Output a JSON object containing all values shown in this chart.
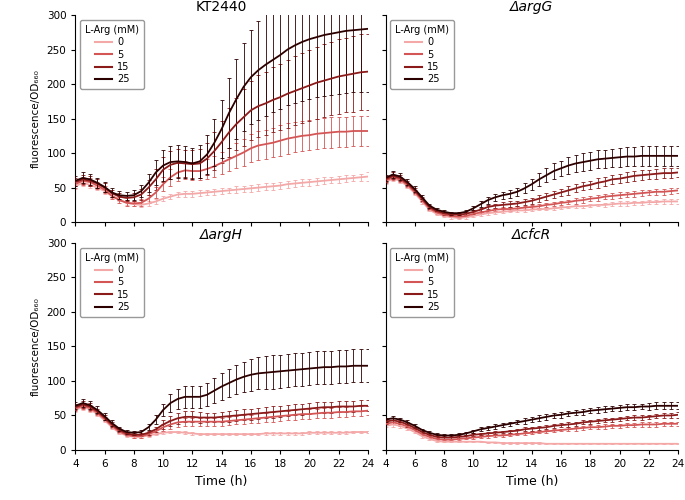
{
  "colors": [
    "#f4a8a8",
    "#d45555",
    "#8b1a1a",
    "#2d0000"
  ],
  "labels": [
    "0",
    "5",
    "15",
    "25"
  ],
  "titles": [
    "KT2440",
    "ΔargG",
    "ΔargH",
    "ΔcfcR"
  ],
  "xlabel": "Time (h)",
  "ylabel": "fluorescence/OD₆₆₀",
  "ylim": [
    0,
    300
  ],
  "xlim": [
    4,
    24
  ],
  "xticks": [
    4,
    6,
    8,
    10,
    12,
    14,
    16,
    18,
    20,
    22,
    24
  ],
  "yticks": [
    0,
    50,
    100,
    150,
    200,
    250,
    300
  ],
  "legend_title": "L-Arg (mM)",
  "time": [
    4.0,
    4.5,
    5.0,
    5.5,
    6.0,
    6.5,
    7.0,
    7.5,
    8.0,
    8.5,
    9.0,
    9.5,
    10.0,
    10.5,
    11.0,
    11.5,
    12.0,
    12.5,
    13.0,
    13.5,
    14.0,
    14.5,
    15.0,
    15.5,
    16.0,
    16.5,
    17.0,
    17.5,
    18.0,
    18.5,
    19.0,
    19.5,
    20.0,
    20.5,
    21.0,
    21.5,
    22.0,
    22.5,
    23.0,
    23.5,
    24.0
  ],
  "panels": {
    "KT2440": {
      "mean": [
        [
          52,
          57,
          54,
          50,
          45,
          38,
          33,
          28,
          26,
          25,
          27,
          30,
          34,
          37,
          40,
          41,
          41,
          42,
          43,
          44,
          45,
          46,
          47,
          48,
          49,
          50,
          51,
          52,
          53,
          55,
          56,
          57,
          58,
          59,
          60,
          61,
          62,
          63,
          64,
          65,
          66
        ],
        [
          55,
          60,
          58,
          53,
          47,
          38,
          32,
          28,
          27,
          28,
          34,
          43,
          55,
          65,
          72,
          75,
          74,
          74,
          77,
          81,
          86,
          91,
          96,
          101,
          107,
          111,
          113,
          115,
          118,
          121,
          123,
          125,
          126,
          128,
          129,
          130,
          131,
          131,
          132,
          132,
          132
        ],
        [
          58,
          62,
          60,
          56,
          50,
          42,
          37,
          35,
          36,
          40,
          50,
          62,
          76,
          83,
          86,
          85,
          84,
          85,
          92,
          103,
          116,
          130,
          142,
          152,
          162,
          168,
          172,
          177,
          181,
          186,
          190,
          194,
          198,
          202,
          205,
          208,
          211,
          213,
          215,
          217,
          218
        ],
        [
          60,
          64,
          62,
          57,
          51,
          43,
          39,
          38,
          39,
          45,
          57,
          72,
          82,
          87,
          88,
          87,
          85,
          88,
          98,
          115,
          135,
          158,
          178,
          196,
          210,
          220,
          228,
          235,
          242,
          250,
          256,
          261,
          265,
          268,
          271,
          273,
          275,
          277,
          278,
          279,
          280
        ]
      ],
      "err": [
        [
          4,
          5,
          5,
          4,
          4,
          3,
          3,
          3,
          3,
          3,
          3,
          4,
          4,
          4,
          4,
          4,
          4,
          4,
          4,
          4,
          4,
          4,
          5,
          5,
          5,
          5,
          5,
          5,
          5,
          5,
          5,
          5,
          5,
          5,
          5,
          5,
          5,
          5,
          5,
          5,
          6
        ],
        [
          5,
          6,
          6,
          5,
          5,
          4,
          4,
          4,
          4,
          5,
          6,
          8,
          10,
          12,
          13,
          13,
          13,
          13,
          14,
          15,
          16,
          17,
          18,
          19,
          20,
          21,
          21,
          21,
          22,
          22,
          22,
          22,
          22,
          22,
          22,
          22,
          22,
          22,
          22,
          22,
          22
        ],
        [
          6,
          7,
          7,
          6,
          6,
          5,
          5,
          5,
          6,
          8,
          11,
          15,
          18,
          20,
          20,
          20,
          20,
          21,
          23,
          27,
          31,
          35,
          38,
          41,
          43,
          45,
          46,
          47,
          48,
          49,
          50,
          51,
          52,
          52,
          53,
          53,
          54,
          54,
          55,
          55,
          55
        ],
        [
          7,
          8,
          8,
          7,
          7,
          6,
          6,
          6,
          7,
          9,
          13,
          18,
          22,
          24,
          24,
          23,
          23,
          24,
          28,
          34,
          42,
          51,
          58,
          64,
          68,
          72,
          74,
          76,
          78,
          81,
          83,
          85,
          86,
          87,
          88,
          89,
          89,
          90,
          90,
          91,
          91
        ]
      ]
    },
    "DargG": {
      "mean": [
        [
          58,
          63,
          60,
          52,
          42,
          30,
          18,
          12,
          9,
          7,
          6,
          7,
          9,
          11,
          13,
          14,
          15,
          16,
          17,
          17,
          18,
          19,
          19,
          20,
          21,
          22,
          23,
          23,
          24,
          25,
          25,
          26,
          27,
          27,
          28,
          28,
          29,
          29,
          30,
          30,
          30
        ],
        [
          60,
          65,
          62,
          54,
          44,
          32,
          20,
          14,
          11,
          9,
          8,
          9,
          12,
          14,
          16,
          18,
          19,
          19,
          20,
          21,
          22,
          23,
          25,
          26,
          28,
          29,
          31,
          32,
          34,
          35,
          37,
          38,
          39,
          40,
          41,
          42,
          43,
          44,
          44,
          45,
          46
        ],
        [
          62,
          67,
          64,
          56,
          46,
          34,
          22,
          16,
          13,
          11,
          11,
          12,
          15,
          18,
          22,
          24,
          25,
          26,
          27,
          29,
          31,
          34,
          37,
          40,
          43,
          46,
          49,
          52,
          54,
          57,
          59,
          62,
          63,
          65,
          67,
          68,
          69,
          70,
          71,
          71,
          72
        ],
        [
          64,
          69,
          66,
          58,
          48,
          36,
          24,
          18,
          15,
          13,
          13,
          15,
          20,
          26,
          32,
          36,
          39,
          41,
          44,
          49,
          55,
          62,
          68,
          74,
          78,
          82,
          85,
          87,
          89,
          91,
          92,
          93,
          94,
          95,
          95,
          96,
          96,
          96,
          96,
          96,
          96
        ]
      ],
      "err": [
        [
          3,
          4,
          4,
          3,
          3,
          3,
          2,
          2,
          2,
          2,
          2,
          2,
          2,
          2,
          2,
          2,
          2,
          2,
          2,
          2,
          2,
          2,
          2,
          2,
          2,
          2,
          2,
          2,
          2,
          2,
          3,
          3,
          3,
          3,
          3,
          3,
          3,
          3,
          3,
          3,
          3
        ],
        [
          3,
          4,
          4,
          3,
          3,
          3,
          2,
          2,
          2,
          2,
          2,
          2,
          2,
          2,
          2,
          2,
          3,
          3,
          3,
          3,
          3,
          3,
          3,
          3,
          3,
          3,
          4,
          4,
          4,
          4,
          4,
          4,
          4,
          4,
          4,
          4,
          4,
          4,
          4,
          4,
          4
        ],
        [
          4,
          5,
          5,
          4,
          4,
          3,
          3,
          2,
          2,
          2,
          2,
          2,
          3,
          3,
          3,
          3,
          4,
          4,
          4,
          4,
          4,
          5,
          5,
          5,
          5,
          6,
          6,
          6,
          6,
          7,
          7,
          7,
          7,
          7,
          7,
          7,
          7,
          7,
          7,
          7,
          7
        ],
        [
          4,
          5,
          5,
          4,
          4,
          3,
          3,
          2,
          2,
          2,
          2,
          2,
          3,
          4,
          5,
          5,
          5,
          6,
          6,
          7,
          8,
          9,
          10,
          11,
          11,
          12,
          12,
          13,
          13,
          13,
          13,
          13,
          14,
          14,
          14,
          14,
          14,
          14,
          14,
          14,
          14
        ]
      ]
    },
    "DargH": {
      "mean": [
        [
          58,
          62,
          59,
          52,
          43,
          33,
          25,
          21,
          19,
          19,
          21,
          23,
          25,
          26,
          26,
          25,
          24,
          23,
          23,
          23,
          23,
          23,
          23,
          23,
          23,
          23,
          24,
          24,
          24,
          24,
          24,
          24,
          25,
          25,
          25,
          25,
          25,
          25,
          26,
          26,
          26
        ],
        [
          60,
          64,
          61,
          54,
          45,
          35,
          27,
          22,
          20,
          20,
          23,
          27,
          33,
          37,
          40,
          41,
          41,
          41,
          41,
          41,
          41,
          42,
          43,
          44,
          45,
          46,
          47,
          48,
          49,
          50,
          51,
          52,
          52,
          53,
          54,
          54,
          55,
          55,
          56,
          56,
          57
        ],
        [
          62,
          66,
          63,
          56,
          47,
          37,
          29,
          24,
          22,
          22,
          25,
          30,
          37,
          42,
          46,
          48,
          48,
          47,
          47,
          47,
          48,
          49,
          50,
          51,
          52,
          53,
          54,
          55,
          56,
          57,
          58,
          59,
          60,
          61,
          62,
          62,
          63,
          63,
          63,
          64,
          64
        ],
        [
          64,
          68,
          65,
          58,
          49,
          39,
          31,
          26,
          25,
          26,
          33,
          44,
          58,
          68,
          74,
          77,
          77,
          77,
          80,
          86,
          92,
          97,
          102,
          106,
          109,
          111,
          112,
          113,
          114,
          115,
          116,
          117,
          118,
          119,
          120,
          120,
          121,
          121,
          122,
          122,
          122
        ]
      ],
      "err": [
        [
          3,
          4,
          4,
          3,
          3,
          3,
          2,
          2,
          2,
          2,
          2,
          2,
          2,
          2,
          2,
          2,
          2,
          2,
          2,
          2,
          2,
          2,
          2,
          2,
          2,
          2,
          2,
          2,
          2,
          2,
          2,
          2,
          2,
          2,
          2,
          2,
          2,
          2,
          2,
          2,
          2
        ],
        [
          3,
          4,
          4,
          3,
          3,
          3,
          2,
          2,
          2,
          2,
          3,
          4,
          5,
          6,
          6,
          6,
          6,
          6,
          6,
          6,
          6,
          6,
          6,
          6,
          6,
          7,
          7,
          7,
          7,
          7,
          7,
          7,
          7,
          7,
          7,
          7,
          7,
          7,
          7,
          7,
          7
        ],
        [
          4,
          5,
          5,
          4,
          4,
          3,
          3,
          2,
          2,
          2,
          3,
          4,
          6,
          7,
          8,
          8,
          8,
          8,
          7,
          7,
          7,
          8,
          8,
          8,
          8,
          8,
          8,
          8,
          8,
          8,
          8,
          8,
          8,
          8,
          8,
          8,
          8,
          8,
          8,
          8,
          8
        ],
        [
          5,
          6,
          6,
          5,
          5,
          4,
          3,
          3,
          3,
          3,
          4,
          6,
          9,
          13,
          15,
          16,
          16,
          16,
          17,
          18,
          19,
          20,
          21,
          22,
          23,
          23,
          24,
          24,
          24,
          24,
          24,
          24,
          24,
          24,
          24,
          24,
          24,
          24,
          24,
          24,
          24
        ]
      ]
    },
    "DcfcR": {
      "mean": [
        [
          35,
          37,
          35,
          31,
          26,
          20,
          16,
          13,
          12,
          12,
          12,
          12,
          12,
          12,
          11,
          11,
          10,
          10,
          10,
          10,
          10,
          10,
          9,
          9,
          9,
          9,
          9,
          9,
          9,
          9,
          9,
          9,
          9,
          9,
          9,
          9,
          9,
          9,
          9,
          9,
          9
        ],
        [
          38,
          40,
          38,
          34,
          29,
          23,
          19,
          16,
          15,
          15,
          16,
          17,
          18,
          19,
          20,
          21,
          21,
          22,
          23,
          24,
          25,
          26,
          27,
          28,
          29,
          30,
          31,
          32,
          33,
          33,
          34,
          35,
          35,
          36,
          36,
          37,
          37,
          37,
          38,
          38,
          38
        ],
        [
          41,
          43,
          41,
          37,
          32,
          26,
          22,
          19,
          18,
          18,
          19,
          20,
          22,
          23,
          24,
          25,
          26,
          27,
          28,
          30,
          31,
          32,
          33,
          35,
          36,
          37,
          38,
          40,
          41,
          42,
          43,
          44,
          45,
          46,
          47,
          47,
          48,
          49,
          50,
          50,
          51
        ],
        [
          44,
          46,
          44,
          40,
          35,
          29,
          25,
          22,
          21,
          21,
          22,
          24,
          27,
          30,
          32,
          34,
          36,
          38,
          40,
          42,
          44,
          46,
          48,
          50,
          51,
          53,
          54,
          55,
          57,
          58,
          59,
          60,
          61,
          62,
          62,
          63,
          63,
          64,
          64,
          64,
          64
        ]
      ],
      "err": [
        [
          2,
          3,
          3,
          2,
          2,
          2,
          2,
          2,
          1,
          1,
          1,
          1,
          1,
          1,
          1,
          1,
          1,
          1,
          1,
          1,
          1,
          1,
          1,
          1,
          1,
          1,
          1,
          1,
          1,
          1,
          1,
          1,
          1,
          1,
          1,
          1,
          1,
          1,
          1,
          1,
          1
        ],
        [
          2,
          3,
          3,
          2,
          2,
          2,
          2,
          1,
          1,
          1,
          1,
          1,
          2,
          2,
          2,
          2,
          2,
          2,
          2,
          2,
          2,
          2,
          2,
          2,
          2,
          3,
          3,
          3,
          3,
          3,
          3,
          3,
          3,
          3,
          3,
          3,
          3,
          3,
          3,
          3,
          3
        ],
        [
          3,
          3,
          3,
          3,
          2,
          2,
          2,
          2,
          2,
          2,
          2,
          2,
          2,
          2,
          2,
          2,
          2,
          2,
          3,
          3,
          3,
          3,
          3,
          3,
          3,
          3,
          3,
          3,
          3,
          3,
          3,
          3,
          3,
          3,
          3,
          3,
          3,
          3,
          3,
          4,
          4
        ],
        [
          3,
          3,
          3,
          3,
          3,
          2,
          2,
          2,
          2,
          2,
          2,
          2,
          2,
          3,
          3,
          3,
          3,
          3,
          3,
          4,
          4,
          4,
          4,
          4,
          4,
          4,
          4,
          4,
          4,
          4,
          4,
          4,
          4,
          4,
          4,
          4,
          5,
          5,
          5,
          5,
          5
        ]
      ]
    }
  }
}
